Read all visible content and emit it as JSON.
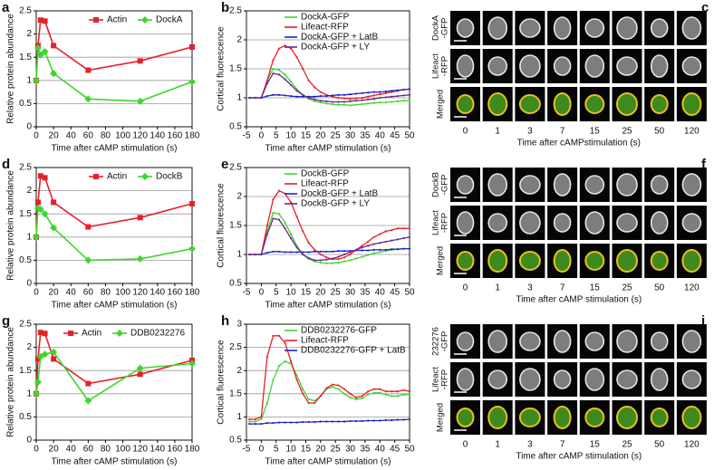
{
  "chart_data": [
    {
      "type": "line",
      "label": "a",
      "xlabel": "Time after cAMP stimulation (s)",
      "ylabel": "Relative protein abundance",
      "xlim": [
        0,
        180
      ],
      "xticks": [
        0,
        20,
        40,
        60,
        80,
        100,
        120,
        140,
        160,
        180
      ],
      "ylim": [
        0,
        2.5
      ],
      "yticks": [
        0,
        0.5,
        1,
        1.5,
        2,
        2.5
      ],
      "grid": true,
      "legend": "upper right",
      "legend_orientation": "horizontal",
      "x": [
        0,
        2,
        5,
        10,
        20,
        60,
        120,
        180
      ],
      "series": [
        {
          "name": "Actin",
          "color": "#e8202a",
          "marker": "square",
          "values": [
            1,
            1.75,
            2.3,
            2.28,
            1.75,
            1.22,
            1.42,
            1.72
          ]
        },
        {
          "name": "DockA",
          "color": "#3dd62e",
          "marker": "diamond",
          "values": [
            1,
            1.7,
            1.55,
            1.62,
            1.15,
            0.6,
            0.55,
            0.97
          ]
        }
      ]
    },
    {
      "type": "line",
      "label": "b",
      "xlabel": "Time after cAMP stimulation (s)",
      "ylabel": "Cortical fluorescence",
      "xlim": [
        -5,
        50
      ],
      "xticks": [
        -5,
        0,
        5,
        10,
        15,
        20,
        25,
        30,
        35,
        40,
        45,
        50
      ],
      "ylim": [
        0.5,
        2.5
      ],
      "yticks": [
        0.5,
        1,
        1.5,
        2,
        2.5
      ],
      "grid": true,
      "legend": "upper right",
      "legend_orientation": "vertical",
      "x": [
        -4,
        -2,
        0,
        2,
        4,
        6,
        8,
        10,
        12,
        14,
        16,
        18,
        20,
        22,
        24,
        26,
        28,
        30,
        32,
        34,
        36,
        38,
        40,
        42,
        44,
        46,
        48,
        50
      ],
      "series": [
        {
          "name": "DockA-GFP",
          "color": "#3dd62e",
          "values": [
            1,
            1,
            1,
            1.3,
            1.5,
            1.48,
            1.4,
            1.28,
            1.15,
            1.05,
            0.98,
            0.94,
            0.92,
            0.9,
            0.89,
            0.88,
            0.88,
            0.87,
            0.88,
            0.89,
            0.9,
            0.91,
            0.92,
            0.92,
            0.93,
            0.94,
            0.95,
            0.95
          ]
        },
        {
          "name": "Lifeact-RFP",
          "color": "#e8202a",
          "values": [
            1,
            1,
            1,
            1.3,
            1.65,
            1.85,
            1.9,
            1.85,
            1.7,
            1.5,
            1.3,
            1.18,
            1.1,
            1.05,
            1.02,
            1,
            0.99,
            0.98,
            0.99,
            1,
            1.02,
            1.04,
            1.06,
            1.08,
            1.1,
            1.12,
            1.14,
            1.15
          ]
        },
        {
          "name": "DockA-GFP + LatB",
          "color": "#2020c8",
          "values": [
            1,
            1,
            1,
            1.03,
            1.05,
            1.05,
            1.04,
            1.03,
            1.02,
            1.02,
            1.02,
            1.02,
            1.03,
            1.03,
            1.04,
            1.05,
            1.05,
            1.06,
            1.07,
            1.08,
            1.09,
            1.1,
            1.1,
            1.11,
            1.12,
            1.13,
            1.14,
            1.15
          ]
        },
        {
          "name": "DockA-GFP + LY",
          "color": "#6a2a8a",
          "values": [
            1,
            1,
            1,
            1.25,
            1.42,
            1.4,
            1.32,
            1.22,
            1.12,
            1.05,
            1,
            0.97,
            0.95,
            0.94,
            0.93,
            0.93,
            0.93,
            0.94,
            0.95,
            0.96,
            0.97,
            0.98,
            1,
            1.01,
            1.02,
            1.03,
            1.04,
            1.05
          ]
        }
      ]
    },
    {
      "type": "line",
      "label": "d",
      "xlabel": "Time after cAMP stimulation (s)",
      "ylabel": "Relative protein abundance",
      "xlim": [
        0,
        180
      ],
      "xticks": [
        0,
        20,
        40,
        60,
        80,
        100,
        120,
        140,
        160,
        180
      ],
      "ylim": [
        0,
        2.5
      ],
      "yticks": [
        0,
        0.5,
        1,
        1.5,
        2,
        2.5
      ],
      "grid": true,
      "legend": "upper right",
      "legend_orientation": "horizontal",
      "x": [
        0,
        2,
        5,
        10,
        20,
        60,
        120,
        180
      ],
      "series": [
        {
          "name": "Actin",
          "color": "#e8202a",
          "marker": "square",
          "values": [
            1,
            1.75,
            2.32,
            2.28,
            1.75,
            1.22,
            1.42,
            1.72
          ]
        },
        {
          "name": "DockB",
          "color": "#3dd62e",
          "marker": "diamond",
          "values": [
            1,
            1.62,
            1.6,
            1.5,
            1.2,
            0.5,
            0.53,
            0.75
          ]
        }
      ]
    },
    {
      "type": "line",
      "label": "e",
      "xlabel": "Time after cAMP stimulation (s)",
      "ylabel": "Cortical fluorescence",
      "xlim": [
        -5,
        50
      ],
      "xticks": [
        -5,
        0,
        5,
        10,
        15,
        20,
        25,
        30,
        35,
        40,
        45,
        50
      ],
      "ylim": [
        0.5,
        2.5
      ],
      "yticks": [
        0.5,
        1,
        1.5,
        2,
        2.5
      ],
      "grid": true,
      "legend": "upper right",
      "legend_orientation": "vertical",
      "x": [
        -4,
        -2,
        0,
        2,
        4,
        6,
        8,
        10,
        12,
        14,
        16,
        18,
        20,
        22,
        24,
        26,
        28,
        30,
        32,
        34,
        36,
        38,
        40,
        42,
        44,
        46,
        48,
        50
      ],
      "series": [
        {
          "name": "DockB-GFP",
          "color": "#3dd62e",
          "values": [
            1,
            1,
            1,
            1.4,
            1.72,
            1.7,
            1.55,
            1.35,
            1.15,
            1,
            0.92,
            0.88,
            0.86,
            0.85,
            0.85,
            0.86,
            0.88,
            0.9,
            0.93,
            0.96,
            0.99,
            1.02,
            1.04,
            1.06,
            1.08,
            1.09,
            1.1,
            1.1
          ]
        },
        {
          "name": "Lifeact-RFP",
          "color": "#e8202a",
          "values": [
            1,
            1,
            1,
            1.5,
            1.95,
            2.1,
            2.05,
            1.9,
            1.65,
            1.4,
            1.2,
            1.08,
            1,
            0.95,
            0.92,
            0.92,
            0.95,
            1,
            1.08,
            1.15,
            1.22,
            1.3,
            1.35,
            1.4,
            1.42,
            1.45,
            1.45,
            1.45
          ]
        },
        {
          "name": "DockB-GFP + LatB",
          "color": "#2020c8",
          "values": [
            1,
            1,
            1,
            1.03,
            1.05,
            1.05,
            1.04,
            1.04,
            1.04,
            1.04,
            1.04,
            1.05,
            1.05,
            1.05,
            1.05,
            1.06,
            1.06,
            1.06,
            1.07,
            1.07,
            1.07,
            1.08,
            1.08,
            1.08,
            1.09,
            1.09,
            1.1,
            1.1
          ]
        },
        {
          "name": "DockB-GFP + LY",
          "color": "#6a2a8a",
          "values": [
            1,
            1,
            1,
            1.35,
            1.62,
            1.6,
            1.45,
            1.28,
            1.12,
            1,
            0.94,
            0.9,
            0.9,
            0.91,
            0.93,
            0.96,
            1,
            1.04,
            1.08,
            1.12,
            1.15,
            1.18,
            1.2,
            1.22,
            1.24,
            1.26,
            1.28,
            1.3
          ]
        }
      ]
    },
    {
      "type": "line",
      "label": "g",
      "xlabel": "Time after cAMP stimulation (s)",
      "ylabel": "Relative protein abundance",
      "xlim": [
        0,
        180
      ],
      "xticks": [
        0,
        20,
        40,
        60,
        80,
        100,
        120,
        140,
        160,
        180
      ],
      "ylim": [
        0,
        2.5
      ],
      "yticks": [
        0,
        0.5,
        1,
        1.5,
        2,
        2.5
      ],
      "grid": true,
      "legend": "upper right",
      "legend_orientation": "horizontal",
      "x": [
        0,
        2,
        5,
        10,
        20,
        60,
        120,
        180
      ],
      "series": [
        {
          "name": "Actin",
          "color": "#e8202a",
          "marker": "square",
          "values": [
            1,
            1.75,
            2.32,
            2.3,
            1.75,
            1.22,
            1.42,
            1.72
          ]
        },
        {
          "name": "DDB0232276",
          "color": "#3dd62e",
          "marker": "diamond",
          "values": [
            1,
            1.25,
            1.8,
            1.85,
            1.9,
            0.85,
            1.55,
            1.65
          ]
        }
      ]
    },
    {
      "type": "line",
      "label": "h",
      "xlabel": "Time after cAMP stimulation (s)",
      "ylabel": "Cortical fluorescence",
      "xlim": [
        -5,
        50
      ],
      "xticks": [
        -5,
        0,
        5,
        10,
        15,
        20,
        25,
        30,
        35,
        40,
        45,
        50
      ],
      "ylim": [
        0.5,
        3
      ],
      "yticks": [
        0.5,
        1,
        1.5,
        2,
        2.5,
        3
      ],
      "grid": true,
      "legend": "upper right",
      "legend_orientation": "vertical",
      "x": [
        -4,
        -2,
        0,
        2,
        4,
        6,
        8,
        10,
        12,
        14,
        16,
        18,
        20,
        22,
        24,
        26,
        28,
        30,
        32,
        34,
        36,
        38,
        40,
        42,
        44,
        46,
        48,
        50
      ],
      "series": [
        {
          "name": "DDB0232276-GFP",
          "color": "#3dd62e",
          "values": [
            0.9,
            0.9,
            0.95,
            1.3,
            1.8,
            2.1,
            2.2,
            2.15,
            1.9,
            1.6,
            1.38,
            1.35,
            1.45,
            1.6,
            1.65,
            1.6,
            1.5,
            1.42,
            1.38,
            1.4,
            1.48,
            1.52,
            1.52,
            1.48,
            1.45,
            1.45,
            1.48,
            1.48
          ]
        },
        {
          "name": "Lifeact-RFP",
          "color": "#e8202a",
          "values": [
            0.95,
            0.95,
            1,
            2.3,
            2.75,
            2.75,
            2.6,
            2.2,
            1.8,
            1.5,
            1.3,
            1.3,
            1.45,
            1.62,
            1.7,
            1.68,
            1.6,
            1.5,
            1.42,
            1.45,
            1.55,
            1.6,
            1.6,
            1.55,
            1.55,
            1.55,
            1.58,
            1.55
          ]
        },
        {
          "name": "DDB0232276-GFP + LatB",
          "color": "#2020c8",
          "values": [
            0.85,
            0.85,
            0.85,
            0.87,
            0.87,
            0.88,
            0.88,
            0.88,
            0.88,
            0.89,
            0.89,
            0.89,
            0.9,
            0.9,
            0.9,
            0.9,
            0.9,
            0.91,
            0.91,
            0.91,
            0.92,
            0.92,
            0.92,
            0.93,
            0.93,
            0.94,
            0.94,
            0.95
          ]
        }
      ]
    }
  ],
  "image_panels": [
    {
      "label": "c",
      "row_labels": [
        [
          "DockA",
          "-GFP"
        ],
        [
          "Lifeact",
          "-RFP"
        ],
        [
          "Merged"
        ]
      ],
      "times": [
        0,
        1,
        3,
        7,
        15,
        25,
        50,
        120
      ],
      "xlabel": "Time after cAMPstimulation (s)"
    },
    {
      "label": "f",
      "row_labels": [
        [
          "DockB",
          "-GFP"
        ],
        [
          "Lifeact",
          "-RFP"
        ],
        [
          "Merged"
        ]
      ],
      "times": [
        0,
        1,
        3,
        7,
        15,
        25,
        50,
        120
      ],
      "xlabel": "Time after cAMP stimulation (s)"
    },
    {
      "label": "i",
      "row_labels": [
        [
          "232276",
          "-GFP"
        ],
        [
          "Lifeact",
          "-RFP"
        ],
        [
          "Merged"
        ]
      ],
      "times": [
        0,
        1,
        3,
        7,
        15,
        25,
        50,
        120
      ],
      "xlabel": "Time after cAMP stimulation (s)"
    }
  ]
}
